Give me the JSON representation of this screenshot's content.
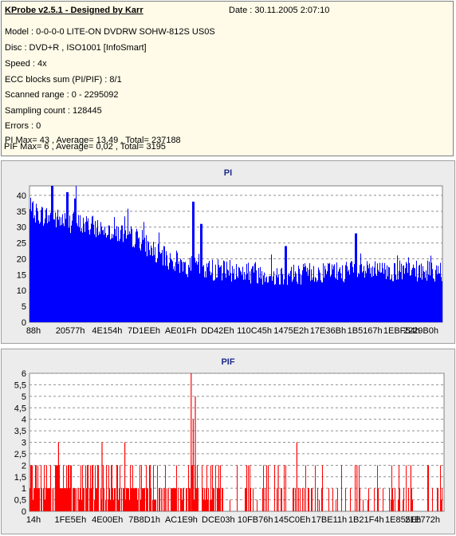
{
  "header": {
    "title": "KProbe v2.5.1 - Designed by Karr",
    "date": "Date : 30.11.2005 2:07:10",
    "lines": [
      "Model : 0-0-0-0 LITE-ON DVDRW SOHW-812S  US0S",
      "Disc : DVD+R , ISO1001 [InfoSmart]",
      "Speed : 4x",
      "ECC blocks sum (PI/PIF) : 8/1",
      "Scanned range : 0 - 2295092",
      "Sampling count : 128445",
      "Errors : 0",
      "PI Max= 43 , Average= 13,49 , Total= 237188",
      "PIF Max= 6 , Average= 0,02 , Total= 3195"
    ]
  },
  "colors": {
    "pi": "#0000ff",
    "pif": "#ff0000",
    "plot_bg": "#ffffff",
    "panel_bg": "#ececec",
    "title": "#1c2a8a",
    "info_bg": "#fffbe8"
  },
  "chart_data": [
    {
      "type": "bar",
      "title": "PI",
      "ylim": [
        0,
        43
      ],
      "yticks": [
        0,
        5,
        10,
        15,
        20,
        25,
        30,
        35,
        40
      ],
      "xtick_labels": [
        "88h",
        "20577h",
        "4E154h",
        "7D1EEh",
        "AE01Fh",
        "DD42Eh",
        "110C45h",
        "1475E2h",
        "17E36Bh",
        "1B5167h",
        "1EBF54h",
        "2229B0h"
      ],
      "grid": true,
      "profile": [
        {
          "x": 0.0,
          "y": 35
        },
        {
          "x": 0.05,
          "y": 33
        },
        {
          "x": 0.12,
          "y": 31
        },
        {
          "x": 0.2,
          "y": 29
        },
        {
          "x": 0.27,
          "y": 26
        },
        {
          "x": 0.3,
          "y": 22
        },
        {
          "x": 0.35,
          "y": 19
        },
        {
          "x": 0.4,
          "y": 17
        },
        {
          "x": 0.5,
          "y": 16
        },
        {
          "x": 0.6,
          "y": 15
        },
        {
          "x": 0.75,
          "y": 16
        },
        {
          "x": 0.9,
          "y": 16
        },
        {
          "x": 1.0,
          "y": 16
        }
      ],
      "spikes": [
        {
          "x": 0.055,
          "y": 43
        },
        {
          "x": 0.09,
          "y": 41
        },
        {
          "x": 0.11,
          "y": 39
        },
        {
          "x": 0.395,
          "y": 38
        },
        {
          "x": 0.415,
          "y": 31
        },
        {
          "x": 0.79,
          "y": 28
        },
        {
          "x": 0.62,
          "y": 24
        }
      ]
    },
    {
      "type": "bar",
      "title": "PIF",
      "ylim": [
        0,
        6
      ],
      "yticks": [
        0,
        0.5,
        1,
        1.5,
        2,
        2.5,
        3,
        3.5,
        4,
        4.5,
        5,
        5.5,
        6
      ],
      "ytick_labels": [
        "0",
        "0,5",
        "1",
        "1,5",
        "2",
        "2,5",
        "3",
        "3,5",
        "4",
        "4,5",
        "5",
        "5,5",
        "6"
      ],
      "xtick_labels": [
        "14h",
        "1FE5Eh",
        "4E00Eh",
        "7B8D1h",
        "AC1E9h",
        "DCE03h",
        "10FB76h",
        "145C0Eh",
        "17BE11h",
        "1B21F4h",
        "1E855Eh",
        "21E772h"
      ],
      "grid": true,
      "spikes": [
        {
          "x": 0.07,
          "y": 3
        },
        {
          "x": 0.14,
          "y": 2
        },
        {
          "x": 0.175,
          "y": 3
        },
        {
          "x": 0.23,
          "y": 3
        },
        {
          "x": 0.39,
          "y": 6
        },
        {
          "x": 0.4,
          "y": 5
        },
        {
          "x": 0.395,
          "y": 4
        },
        {
          "x": 0.6,
          "y": 2
        },
        {
          "x": 0.645,
          "y": 3
        },
        {
          "x": 0.79,
          "y": 2
        },
        {
          "x": 0.92,
          "y": 2
        }
      ]
    }
  ]
}
